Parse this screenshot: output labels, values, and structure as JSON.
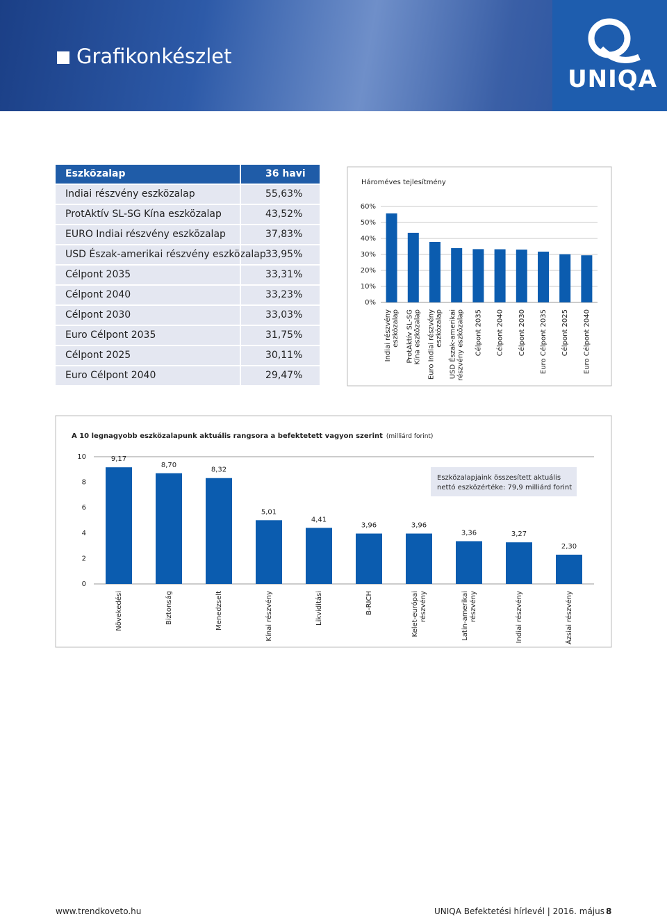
{
  "header": {
    "title": "Grafikonkészlet",
    "logo": "UNIQA"
  },
  "table": {
    "columns": [
      "Eszközalap",
      "36 havi"
    ],
    "rows": [
      [
        "Indiai részvény eszközalap",
        "55,63%"
      ],
      [
        "ProtAktív SL-SG Kína eszközalap",
        "43,52%"
      ],
      [
        "EURO Indiai részvény eszközalap",
        "37,83%"
      ],
      [
        "USD Észak-amerikai részvény eszközalap",
        "33,95%"
      ],
      [
        "Célpont 2035",
        "33,31%"
      ],
      [
        "Célpont 2040",
        "33,23%"
      ],
      [
        "Célpont 2030",
        "33,03%"
      ],
      [
        "Euro Célpont 2035",
        "31,75%"
      ],
      [
        "Célpont 2025",
        "30,11%"
      ],
      [
        "Euro Célpont 2040",
        "29,47%"
      ]
    ]
  },
  "chart_data": [
    {
      "type": "bar",
      "title": "Hároméves tejlesítmény",
      "categories": [
        "Indiai részvény\neszközalap",
        "ProtAktív SL-SG\nKína eszközalap",
        "Euro Indiai részvény\neszközalap",
        "USD Észak-amerikai\nrészvény eszközalap",
        "Célpont 2035",
        "Célpont 2040",
        "Célpont 2030",
        "Euro Célpont 2035",
        "Célpont 2025",
        "Euro Célpont 2040"
      ],
      "values": [
        55.63,
        43.52,
        37.83,
        33.95,
        33.31,
        33.23,
        33.03,
        31.75,
        30.11,
        29.47
      ],
      "color": "#0b5caf",
      "ylim": [
        0,
        60
      ],
      "yticks": [
        {
          "value": 0,
          "label": "0%"
        },
        {
          "value": 10,
          "label": "10%"
        },
        {
          "value": 20,
          "label": "20%"
        },
        {
          "value": 30,
          "label": "30%"
        },
        {
          "value": 40,
          "label": "40%"
        },
        {
          "value": 50,
          "label": "50%"
        },
        {
          "value": 60,
          "label": "60%"
        }
      ],
      "grid": true
    },
    {
      "type": "bar",
      "title": "A 10 legnagyobb eszközalapunk aktuális rangsora a befektetett vagyon szerint",
      "subtitle": "(milliárd forint)",
      "annotation": "Eszközalapjaink összesített aktuális\nnettó eszközértéke: 79,9 milliárd forint",
      "categories": [
        "Növekedési",
        "Biztonság",
        "Menedzselt",
        "Kínai részvény",
        "Likviditási",
        "B-RICH",
        "Kelet-európai\nrészvény",
        "Latin-amerikai\nrészvény",
        "Indiai részvény",
        "Ázsiai részvény"
      ],
      "values": [
        9.17,
        8.7,
        8.32,
        5.01,
        4.41,
        3.96,
        3.96,
        3.36,
        3.27,
        2.3
      ],
      "value_labels": [
        "9,17",
        "8,70",
        "8,32",
        "5,01",
        "4,41",
        "3,96",
        "3,96",
        "3,36",
        "3,27",
        "2,30"
      ],
      "color": "#0b5caf",
      "ylim": [
        0,
        10
      ],
      "yticks": [
        0,
        2,
        4,
        6,
        8,
        10
      ],
      "grid": false
    }
  ],
  "footer": {
    "url": "www.trendkoveto.hu",
    "publication": "UNIQA Befektetési hírlevél | 2016. május",
    "page": "8"
  }
}
